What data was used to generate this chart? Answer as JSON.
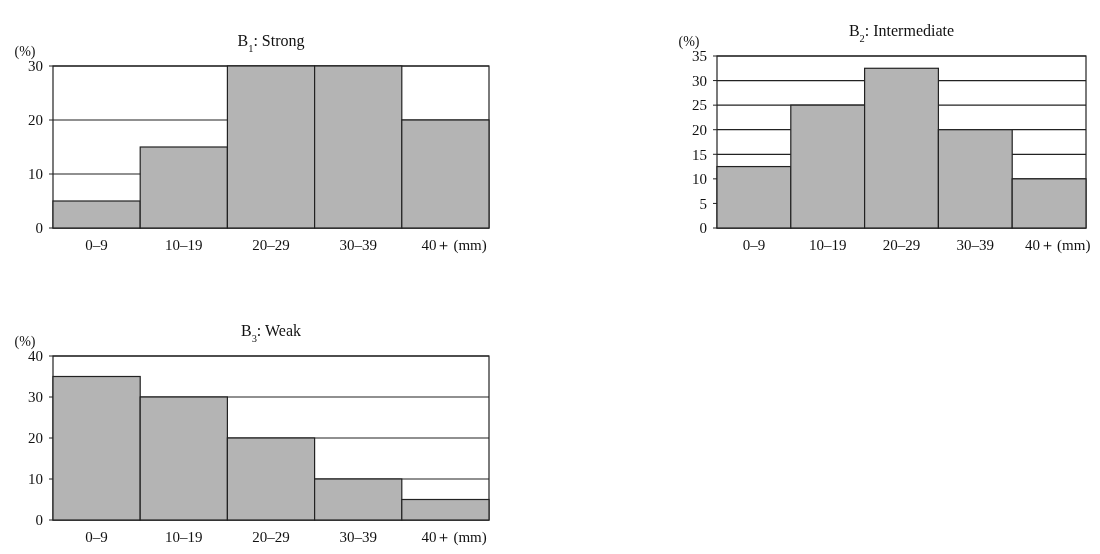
{
  "chart_data": [
    {
      "type": "bar",
      "title": "B$_{1}$: Strong",
      "ylabel": "(%)",
      "xlabel": "(mm)",
      "categories": [
        "0–9",
        "10–19",
        "20–29",
        "30–39",
        "40＋"
      ],
      "values": [
        5,
        15,
        30,
        30,
        20
      ],
      "color": "#b4b4b4",
      "ylim": [
        0,
        30
      ],
      "yticks": [
        0,
        10,
        20,
        30
      ],
      "grid": "y"
    },
    {
      "type": "bar",
      "title": "B$_{2}$: Intermediate",
      "ylabel": "(%)",
      "xlabel": "(mm)",
      "categories": [
        "0–9",
        "10–19",
        "20–29",
        "30–39",
        "40＋"
      ],
      "values": [
        12.5,
        25,
        32.5,
        20,
        10
      ],
      "color": "#b4b4b4",
      "ylim": [
        0,
        35
      ],
      "yticks": [
        0,
        5,
        10,
        15,
        20,
        25,
        30,
        35
      ],
      "grid": "y"
    },
    {
      "type": "bar",
      "title": "B$_{3}$: Weak",
      "ylabel": "(%)",
      "xlabel": "(mm)",
      "categories": [
        "0–9",
        "10–19",
        "20–29",
        "30–39",
        "40＋"
      ],
      "values": [
        35,
        30,
        20,
        10,
        5
      ],
      "color": "#b4b4b4",
      "ylim": [
        0,
        40
      ],
      "yticks": [
        0,
        10,
        20,
        30,
        40
      ],
      "grid": "y"
    }
  ]
}
